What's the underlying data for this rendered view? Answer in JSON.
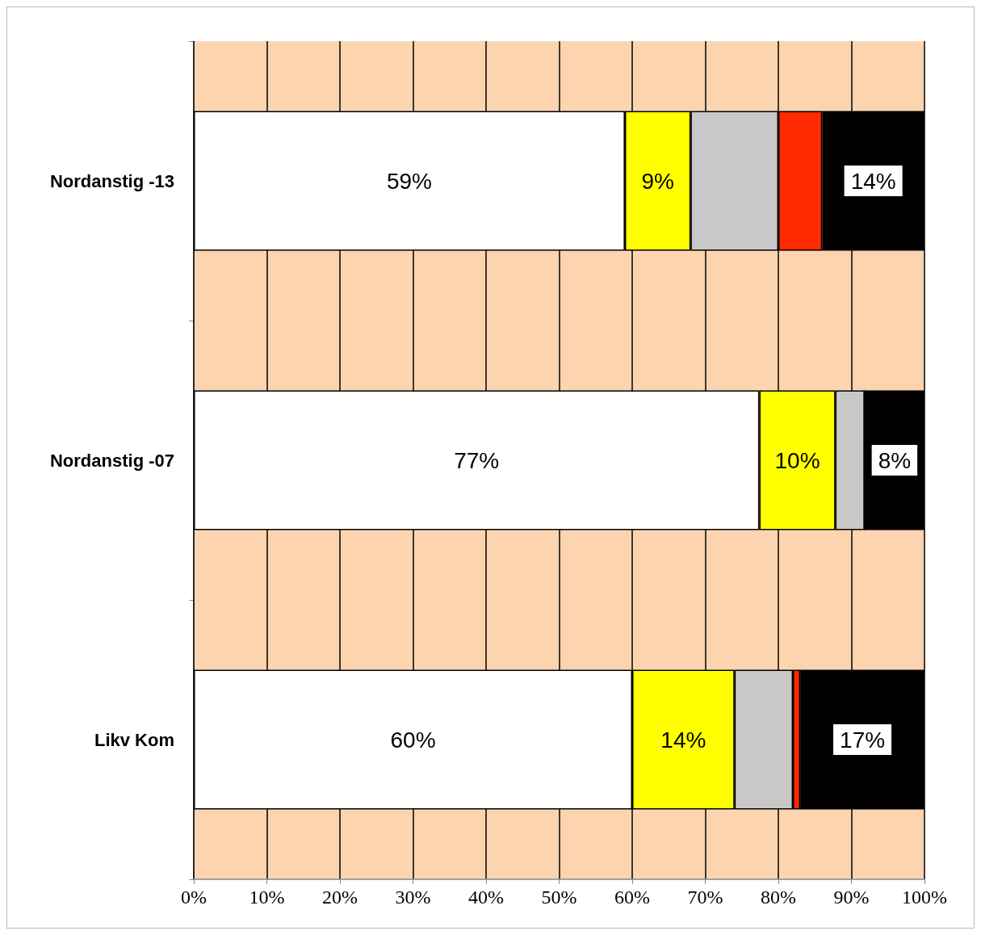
{
  "chart_data": {
    "type": "bar",
    "orientation": "horizontal",
    "stacked": true,
    "categories": [
      "Nordanstig -13",
      "Nordanstig -07",
      "Likv Kom"
    ],
    "series": [
      {
        "color": "#ffffff",
        "values": [
          59,
          77.4,
          60
        ],
        "value_labels": [
          "59%",
          "77%",
          "60%"
        ]
      },
      {
        "color": "#ffff00",
        "values": [
          9,
          10.4,
          14
        ],
        "value_labels": [
          "9%",
          "10%",
          "14%"
        ]
      },
      {
        "color": "#c8c8c8",
        "values": [
          12,
          4,
          8
        ]
      },
      {
        "color": "#ff2a00",
        "values": [
          6,
          0,
          1
        ]
      },
      {
        "color": "#000000",
        "values": [
          14,
          8.2,
          17
        ],
        "value_labels": [
          "14%",
          "8%",
          "17%"
        ]
      }
    ],
    "xlim": [
      0,
      100
    ],
    "xticks": [
      {
        "value": 0,
        "label": "0%"
      },
      {
        "value": 10,
        "label": "10%"
      },
      {
        "value": 20,
        "label": "20%"
      },
      {
        "value": 30,
        "label": "30%"
      },
      {
        "value": 40,
        "label": "40%"
      },
      {
        "value": 50,
        "label": "50%"
      },
      {
        "value": 60,
        "label": "60%"
      },
      {
        "value": 70,
        "label": "70%"
      },
      {
        "value": 80,
        "label": "80%"
      },
      {
        "value": 90,
        "label": "90%"
      },
      {
        "value": 100,
        "label": "100%"
      }
    ],
    "bands": [
      {
        "axis": "x",
        "from": 0,
        "to": 100,
        "color": "#fcd5b0"
      }
    ],
    "grid": "x"
  }
}
